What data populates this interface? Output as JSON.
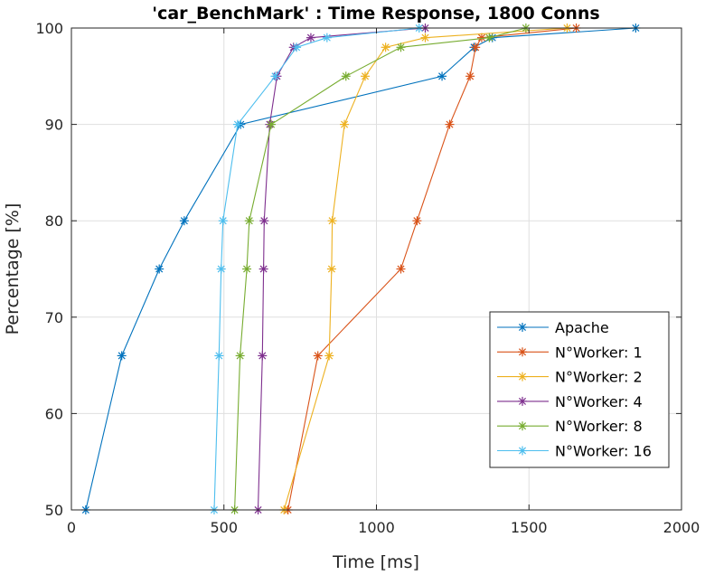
{
  "chart_data": {
    "type": "line",
    "title": "'car_BenchMark' : Time Response, 1800 Conns",
    "xlabel": "Time [ms]",
    "ylabel": "Percentage [%]",
    "xlim": [
      0,
      2000
    ],
    "ylim": [
      50,
      100
    ],
    "xticks": [
      0,
      500,
      1000,
      1500,
      2000
    ],
    "yticks": [
      50,
      60,
      70,
      80,
      90,
      100
    ],
    "xtick_labels": [
      "0",
      "500",
      "1000",
      "1500",
      "2000"
    ],
    "ytick_labels": [
      "50",
      "60",
      "70",
      "80",
      "90",
      "100"
    ],
    "grid": true,
    "legend_position": "bottom-right",
    "percentiles": [
      50,
      66,
      75,
      80,
      90,
      95,
      98,
      99,
      100
    ],
    "series": [
      {
        "name": "Apache",
        "color": "#0072BD",
        "x": [
          47,
          165,
          288,
          370,
          555,
          1215,
          1320,
          1380,
          1850
        ]
      },
      {
        "name": "N°Worker: 1",
        "color": "#D95319",
        "x": [
          710,
          808,
          1080,
          1133,
          1240,
          1307,
          1325,
          1345,
          1655
        ]
      },
      {
        "name": "N°Worker: 2",
        "color": "#EDB120",
        "x": [
          697,
          845,
          853,
          855,
          895,
          963,
          1030,
          1160,
          1625
        ]
      },
      {
        "name": "N°Worker: 4",
        "color": "#7E2F8E",
        "x": [
          612,
          626,
          630,
          632,
          650,
          674,
          728,
          785,
          1160
        ]
      },
      {
        "name": "N°Worker: 8",
        "color": "#77AC30",
        "x": [
          535,
          553,
          575,
          583,
          655,
          900,
          1080,
          1370,
          1490
        ]
      },
      {
        "name": "N°Worker: 16",
        "color": "#4DBEEE",
        "x": [
          468,
          484,
          491,
          497,
          545,
          668,
          738,
          838,
          1140
        ]
      }
    ]
  }
}
